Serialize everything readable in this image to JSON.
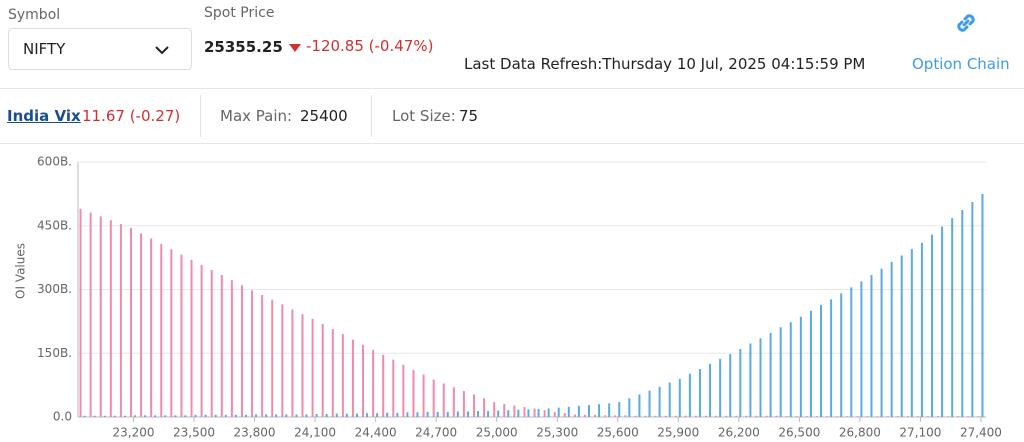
{
  "header": {
    "symbol_label": "Symbol",
    "symbol": "NIFTY",
    "spot_label": "Spot Price",
    "spot_price": "25355.25",
    "spot_change": "-120.85 (-0.47%)",
    "last_refresh": "Last Data Refresh:Thursday 10 Jul, 2025 04:15:59 PM",
    "option_chain": "Option Chain"
  },
  "stats": {
    "vix_label": "India Vix",
    "vix_value": "11.67 (-0.27)",
    "max_pain_label": "Max Pain:",
    "max_pain_value": "25400",
    "lot_size_label": "Lot Size:",
    "lot_size_value": "75"
  },
  "chart_data": {
    "type": "bar",
    "y_label": "OI Values",
    "categories": [
      null,
      null,
      null,
      null,
      null,
      "23,200",
      null,
      null,
      null,
      null,
      null,
      "23,500",
      null,
      null,
      null,
      null,
      null,
      "23,800",
      null,
      null,
      null,
      null,
      null,
      "24,100",
      null,
      null,
      null,
      null,
      null,
      "24,400",
      null,
      null,
      null,
      null,
      null,
      "24,700",
      null,
      null,
      null,
      null,
      null,
      "25,000",
      null,
      null,
      null,
      null,
      null,
      "25,300",
      null,
      null,
      null,
      null,
      null,
      "25,600",
      null,
      null,
      null,
      null,
      null,
      "25,900",
      null,
      null,
      null,
      null,
      null,
      "26,200",
      null,
      null,
      null,
      null,
      null,
      "26,500",
      null,
      null,
      null,
      null,
      null,
      "26,800",
      null,
      null,
      null,
      null,
      null,
      "27,100",
      null,
      null,
      null,
      null,
      null,
      "27,400"
    ],
    "series": [
      {
        "color": "#f28aab",
        "values": [
          490,
          481,
          472,
          463,
          454,
          445,
          432,
          420,
          407,
          395,
          382,
          370,
          358,
          346,
          334,
          322,
          310,
          298,
          287,
          276,
          265,
          253,
          242,
          231,
          219,
          207,
          195,
          182,
          170,
          158,
          146,
          135,
          123,
          111,
          100,
          88,
          79,
          70,
          61,
          53,
          44,
          35,
          31,
          27,
          23,
          20,
          16,
          12,
          9,
          6,
          5,
          5,
          4,
          4,
          4,
          3,
          3,
          3,
          3,
          3,
          3,
          3,
          3,
          3,
          3,
          3,
          3,
          3,
          3,
          3,
          2,
          2,
          2,
          2,
          2,
          2,
          2,
          2,
          2,
          2,
          2,
          2,
          2,
          2,
          2,
          2,
          2,
          2,
          2,
          2
        ]
      },
      {
        "color": "#5aaae6",
        "values": [
          3,
          3,
          3,
          3,
          3,
          4,
          4,
          4,
          4,
          4,
          4,
          5,
          5,
          5,
          5,
          5,
          5,
          6,
          6,
          6,
          6,
          6,
          6,
          7,
          7,
          8,
          8,
          8,
          9,
          9,
          10,
          10,
          11,
          11,
          12,
          12,
          12,
          13,
          13,
          14,
          14,
          15,
          16,
          17,
          18,
          19,
          20,
          22,
          24,
          26,
          28,
          30,
          32,
          35,
          44,
          53,
          62,
          71,
          81,
          90,
          102,
          113,
          125,
          137,
          148,
          160,
          173,
          185,
          198,
          211,
          223,
          236,
          250,
          264,
          277,
          291,
          305,
          319,
          334,
          349,
          365,
          380,
          395,
          410,
          429,
          448,
          468,
          487,
          506,
          525
        ]
      }
    ],
    "ylim": [
      0,
      600
    ],
    "yticks": [
      {
        "value": 0,
        "label": "0.0"
      },
      {
        "value": 150,
        "label": "150B."
      },
      {
        "value": 300,
        "label": "300B."
      },
      {
        "value": 450,
        "label": "450B."
      },
      {
        "value": 600,
        "label": "600B."
      }
    ],
    "grid": true
  }
}
